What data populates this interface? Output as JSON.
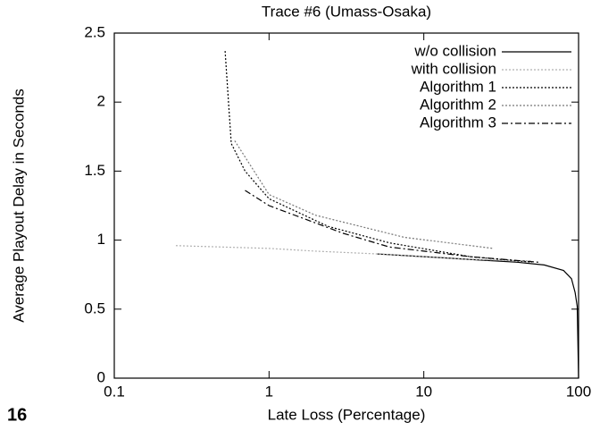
{
  "page_number": "16",
  "chart_data": {
    "type": "line",
    "title": "Trace #6 (Umass-Osaka)",
    "x_label": "Late Loss (Percentage)",
    "y_label": "Average Playout Delay in Seconds",
    "xscale": "log",
    "xlim": [
      0.1,
      100
    ],
    "xticks": [
      0.1,
      1,
      10,
      100
    ],
    "ylim": [
      0,
      2.5
    ],
    "yticks": [
      0,
      0.5,
      1,
      1.5,
      2,
      2.5
    ],
    "legend": "upper right",
    "series": [
      {
        "name": "w/o collision",
        "color": "#000000",
        "linestyle": "solid",
        "x": [
          5,
          10,
          20,
          40,
          60,
          80,
          90,
          95,
          98,
          100
        ],
        "values": [
          0.9,
          0.88,
          0.86,
          0.84,
          0.82,
          0.78,
          0.72,
          0.62,
          0.52,
          0
        ]
      },
      {
        "name": "with collision",
        "color": "#b0b0b0",
        "linestyle": "dotted",
        "x": [
          0.25,
          0.5,
          1,
          2,
          5,
          10,
          20,
          50
        ],
        "values": [
          0.96,
          0.95,
          0.94,
          0.92,
          0.9,
          0.88,
          0.86,
          0.85
        ]
      },
      {
        "name": "Algorithm 1",
        "color": "#000000",
        "linestyle": "dotted",
        "x": [
          0.52,
          0.57,
          0.7,
          1,
          2.4,
          6,
          20,
          50
        ],
        "values": [
          2.37,
          1.7,
          1.5,
          1.3,
          1.1,
          0.98,
          0.88,
          0.84
        ]
      },
      {
        "name": "Algorithm 2",
        "color": "#777777",
        "linestyle": "dotted",
        "x": [
          0.6,
          1,
          2,
          7.5,
          28
        ],
        "values": [
          1.72,
          1.33,
          1.18,
          1.02,
          0.94
        ]
      },
      {
        "name": "Algorithm 3",
        "color": "#000000",
        "linestyle": "dashdot",
        "x": [
          0.7,
          1,
          3,
          6,
          20,
          55
        ],
        "values": [
          1.36,
          1.25,
          1.05,
          0.95,
          0.88,
          0.84
        ]
      }
    ]
  }
}
